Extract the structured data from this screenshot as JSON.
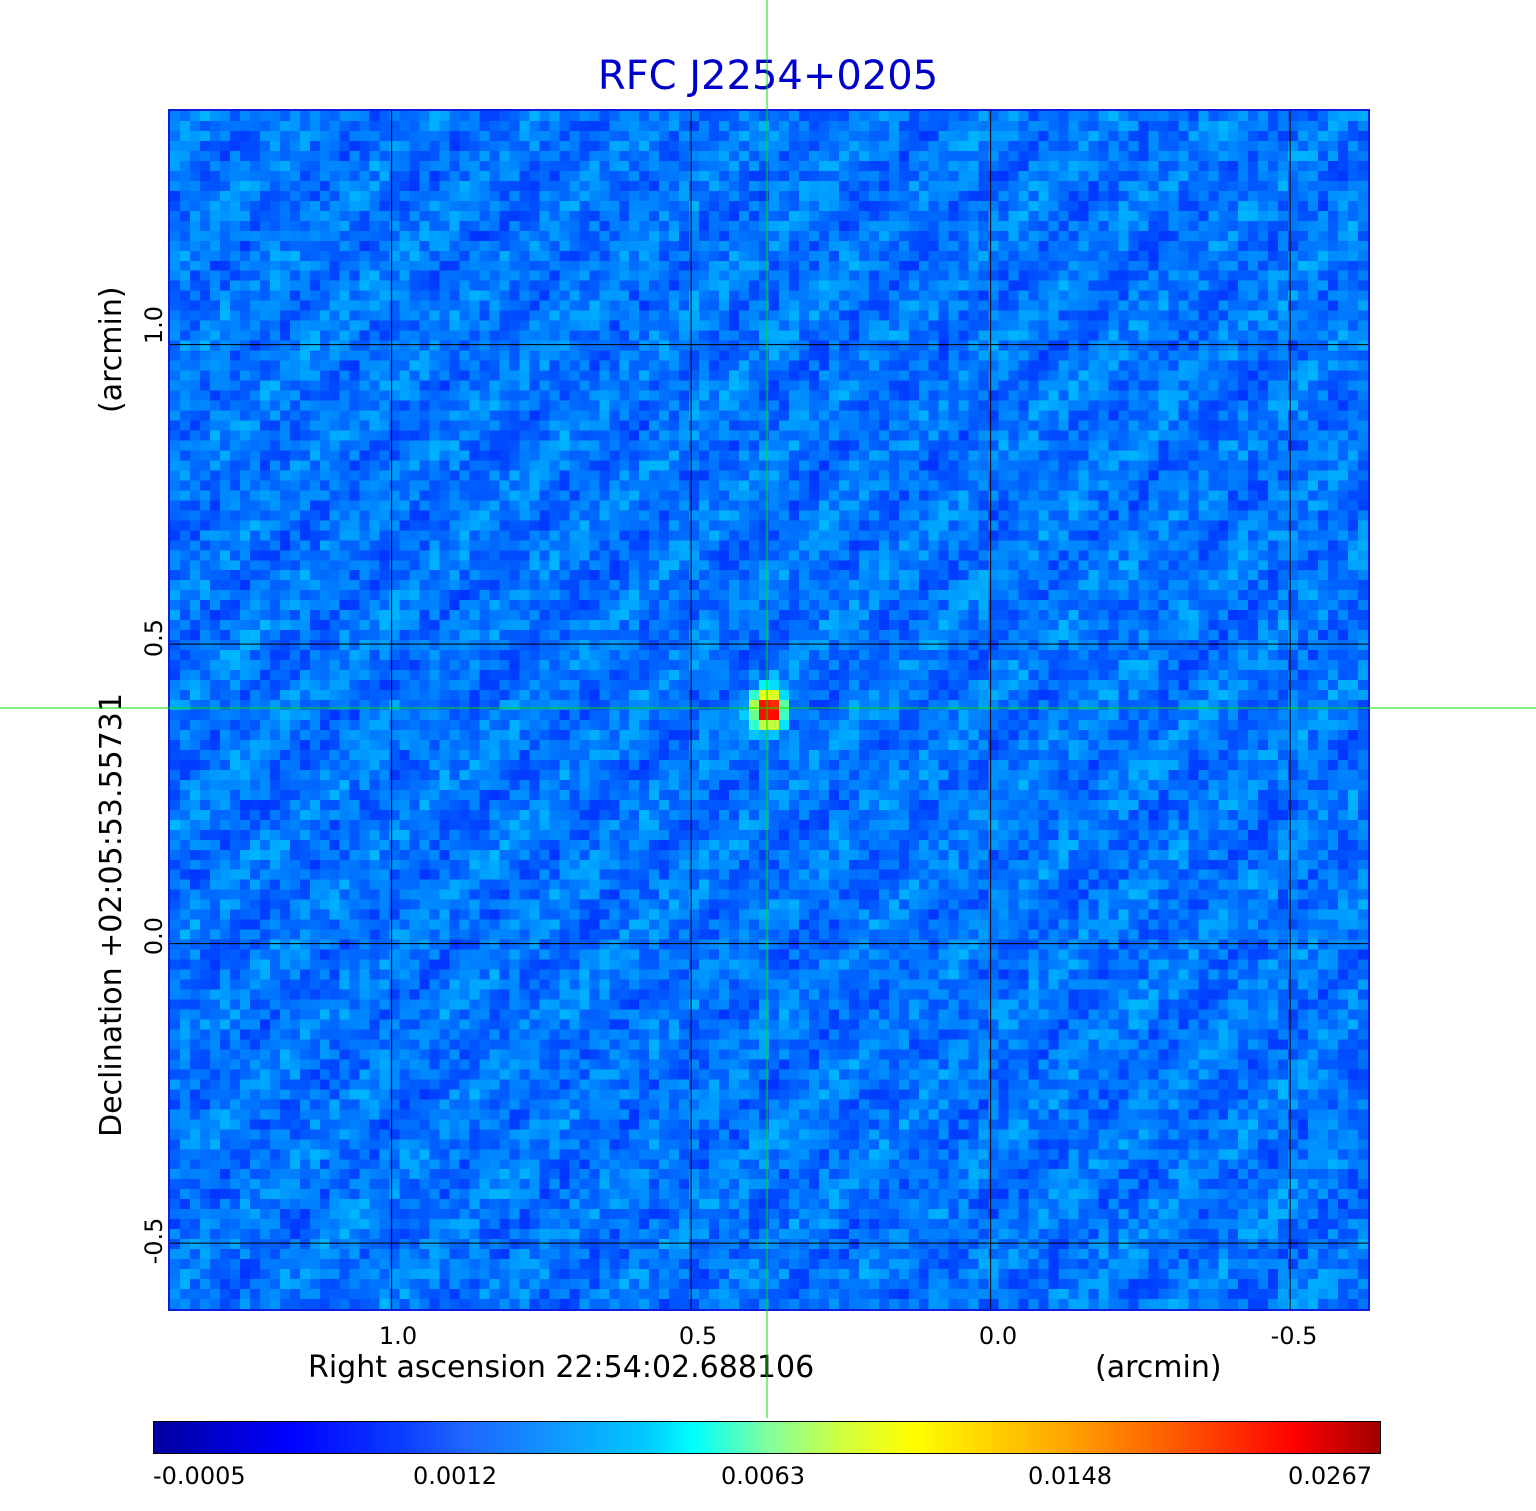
{
  "chart_data": {
    "type": "heatmap",
    "title": "RFC J2254+0205",
    "xlabel": "Right ascension  22:54:02.688106",
    "xunit": "(arcmin)",
    "ylabel": "Declination  +02:05:53.55731",
    "yunit": "(arcmin)",
    "x_ticks": [
      "1.0",
      "0.5",
      "0.0",
      "-0.5"
    ],
    "y_ticks": [
      "1.0",
      "0.5",
      "0.0",
      "-0.5"
    ],
    "x_tick_values": [
      1.0,
      0.5,
      0.0,
      -0.5
    ],
    "y_tick_values": [
      1.0,
      0.5,
      0.0,
      -0.5
    ],
    "xlim": [
      1.37,
      -0.63
    ],
    "ylim": [
      -0.61,
      1.39
    ],
    "grid": true,
    "source_position": [
      0.37,
      0.39
    ],
    "colorbar_ticks": [
      "-0.0005",
      "0.0012",
      "0.0063",
      "0.0148",
      "0.0267"
    ],
    "colorbar_range": [
      -0.0005,
      0.0267
    ],
    "colormap": "jet",
    "crosshair_color": "#00e000"
  }
}
